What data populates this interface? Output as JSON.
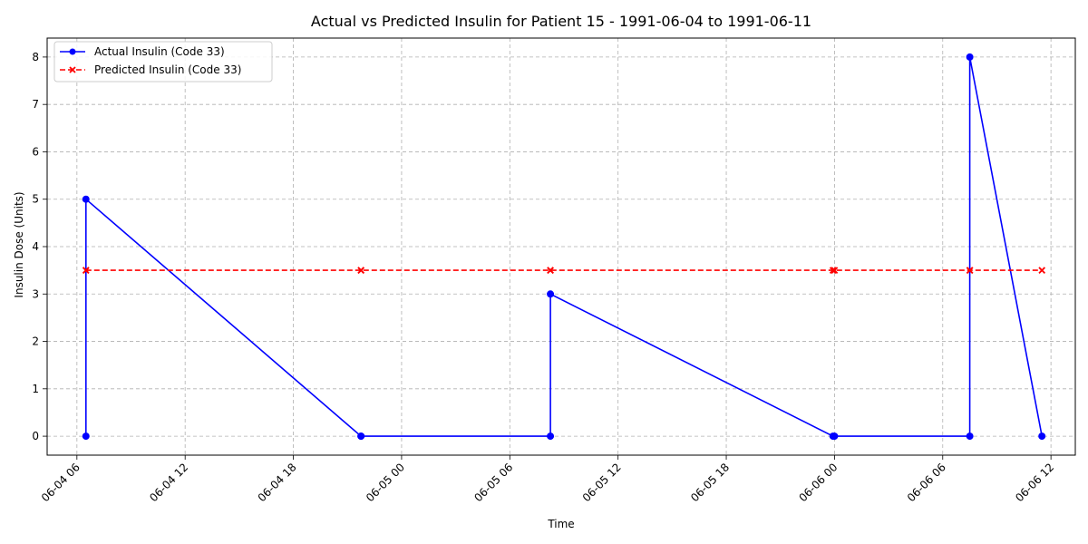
{
  "chart_data": {
    "type": "line",
    "title": "Actual vs Predicted Insulin for Patient 15 - 1991-06-04 to 1991-06-11",
    "xlabel": "Time",
    "ylabel": "Insulin Dose (Units)",
    "grid": true,
    "legend_position": "top-left",
    "x_ticks": [
      "06-04 06",
      "06-04 12",
      "06-04 18",
      "06-05 00",
      "06-05 06",
      "06-05 12",
      "06-05 18",
      "06-06 00",
      "06-06 06",
      "06-06 12"
    ],
    "y_ticks": [
      "0",
      "1",
      "2",
      "3",
      "4",
      "5",
      "6",
      "7",
      "8"
    ],
    "ylim": [
      -0.4,
      8.4
    ],
    "xlim": [
      "1991-06-04 04:21",
      "1991-06-06 13:21"
    ],
    "series": [
      {
        "name": "Actual Insulin (Code 33)",
        "color": "#0000ff",
        "line_style": "solid",
        "marker": "circle",
        "points": [
          {
            "x": "1991-06-04 06:30",
            "y": 0
          },
          {
            "x": "1991-06-04 06:30",
            "y": 5
          },
          {
            "x": "1991-06-04 21:45",
            "y": 0
          },
          {
            "x": "1991-06-04 21:45",
            "y": 0
          },
          {
            "x": "1991-06-05 08:15",
            "y": 0
          },
          {
            "x": "1991-06-05 08:15",
            "y": 3
          },
          {
            "x": "1991-06-05 23:55",
            "y": 0
          },
          {
            "x": "1991-06-06 00:00",
            "y": 0
          },
          {
            "x": "1991-06-06 07:30",
            "y": 0
          },
          {
            "x": "1991-06-06 07:30",
            "y": 8
          },
          {
            "x": "1991-06-06 11:30",
            "y": 0
          }
        ]
      },
      {
        "name": "Predicted Insulin (Code 33)",
        "color": "#ff0000",
        "line_style": "dashed",
        "marker": "x",
        "points": [
          {
            "x": "1991-06-04 06:30",
            "y": 3.5
          },
          {
            "x": "1991-06-04 06:30",
            "y": 3.5
          },
          {
            "x": "1991-06-04 21:45",
            "y": 3.5
          },
          {
            "x": "1991-06-04 21:45",
            "y": 3.5
          },
          {
            "x": "1991-06-05 08:15",
            "y": 3.5
          },
          {
            "x": "1991-06-05 08:15",
            "y": 3.5
          },
          {
            "x": "1991-06-05 23:55",
            "y": 3.5
          },
          {
            "x": "1991-06-06 00:00",
            "y": 3.5
          },
          {
            "x": "1991-06-06 07:30",
            "y": 3.5
          },
          {
            "x": "1991-06-06 07:30",
            "y": 3.5
          },
          {
            "x": "1991-06-06 11:30",
            "y": 3.5
          }
        ]
      }
    ]
  }
}
